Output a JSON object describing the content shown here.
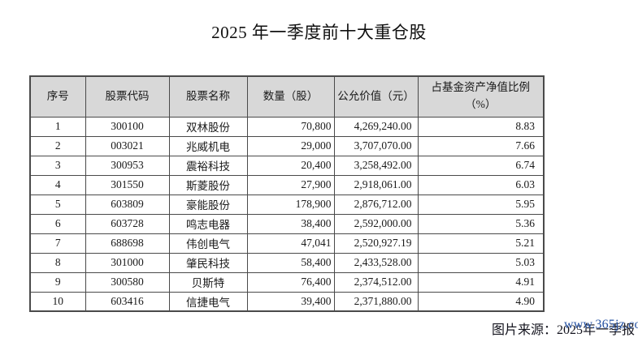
{
  "page": {
    "title": "2025 年一季度前十大重仓股",
    "caption_prefix": "图片来源：",
    "caption_source": "2025年一季报",
    "watermark": "www.365jz.com"
  },
  "table": {
    "columns": [
      {
        "key": "index",
        "label": "序号"
      },
      {
        "key": "code",
        "label": "股票代码"
      },
      {
        "key": "name",
        "label": "股票名称"
      },
      {
        "key": "quantity",
        "label": "数量（股）"
      },
      {
        "key": "fair_value",
        "label": "公允价值（元）"
      },
      {
        "key": "nav_pct",
        "label": "占基金资产净值比例",
        "label_line2": "（%）"
      }
    ],
    "rows": [
      [
        "1",
        "300100",
        "双林股份",
        "70,800",
        "4,269,240.00",
        "8.83"
      ],
      [
        "2",
        "003021",
        "兆威机电",
        "29,000",
        "3,707,070.00",
        "7.66"
      ],
      [
        "3",
        "300953",
        "震裕科技",
        "20,400",
        "3,258,492.00",
        "6.74"
      ],
      [
        "4",
        "301550",
        "斯菱股份",
        "27,900",
        "2,918,061.00",
        "6.03"
      ],
      [
        "5",
        "603809",
        "豪能股份",
        "178,900",
        "2,876,712.00",
        "5.95"
      ],
      [
        "6",
        "603728",
        "鸣志电器",
        "38,400",
        "2,592,000.00",
        "5.36"
      ],
      [
        "7",
        "688698",
        "伟创电气",
        "47,041",
        "2,520,927.19",
        "5.21"
      ],
      [
        "8",
        "301000",
        "肇民科技",
        "58,400",
        "2,433,528.00",
        "5.03"
      ],
      [
        "9",
        "300580",
        "贝斯特",
        "76,400",
        "2,374,512.00",
        "4.91"
      ],
      [
        "10",
        "603416",
        "信捷电气",
        "39,400",
        "2,371,880.00",
        "4.90"
      ]
    ]
  },
  "colors": {
    "header_bg": "#d8d8d8",
    "border": "#4a4a4a",
    "watermark_blue": "#2350a2",
    "caption_text": "#14141e",
    "body_text": "#1a1a1a"
  }
}
